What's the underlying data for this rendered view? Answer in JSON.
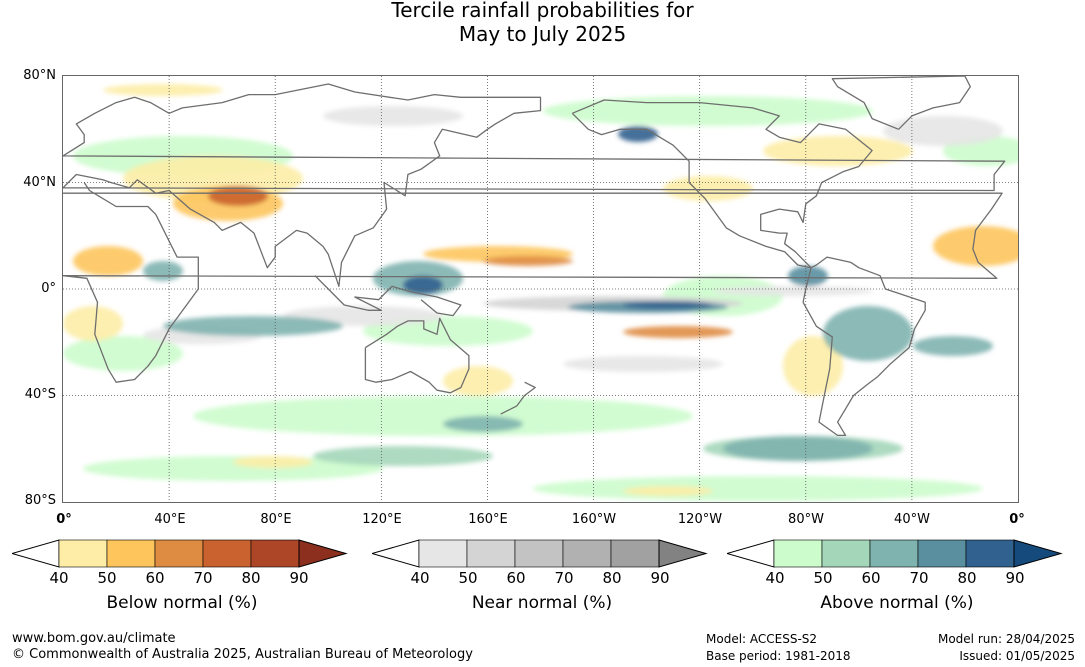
{
  "title": {
    "line1": "Tercile rainfall probabilities for",
    "line2": "May to July 2025"
  },
  "map": {
    "lat_labels": [
      "80°N",
      "40°N",
      "0°",
      "40°S",
      "80°S"
    ],
    "lon_labels": [
      "0°",
      "40°E",
      "80°E",
      "120°E",
      "160°E",
      "160°W",
      "120°W",
      "80°W",
      "40°W",
      "0°"
    ],
    "layers": [
      "rainfall-probability-shading",
      "coastlines",
      "graticule"
    ]
  },
  "legends": {
    "below": {
      "title": "Below normal (%)",
      "ticks": [
        "40",
        "50",
        "60",
        "70",
        "80",
        "90"
      ],
      "colors": [
        "#ffffff",
        "#fdeda6",
        "#fdc55c",
        "#df8c43",
        "#c9622f",
        "#ad4627",
        "#8c2f1e"
      ]
    },
    "near": {
      "title": "Near normal (%)",
      "ticks": [
        "40",
        "50",
        "60",
        "70",
        "80",
        "90"
      ],
      "colors": [
        "#ffffff",
        "#e6e6e6",
        "#d4d4d4",
        "#c3c3c3",
        "#b1b1b1",
        "#a1a1a1",
        "#828282"
      ]
    },
    "above": {
      "title": "Above normal (%)",
      "ticks": [
        "40",
        "50",
        "60",
        "70",
        "80",
        "90"
      ],
      "colors": [
        "#ffffff",
        "#ccfccc",
        "#a4d6b9",
        "#7fb3af",
        "#5a8fa0",
        "#31618f",
        "#154a7d"
      ]
    }
  },
  "footer": {
    "website": "www.bom.gov.au/climate",
    "copyright": "© Commonwealth of Australia 2025, Australian Bureau of Meteorology",
    "model": "Model: ACCESS-S2",
    "base_period": "Base period: 1981-2018",
    "model_run": "Model run: 28/04/2025",
    "issued": "Issued: 01/05/2025"
  }
}
